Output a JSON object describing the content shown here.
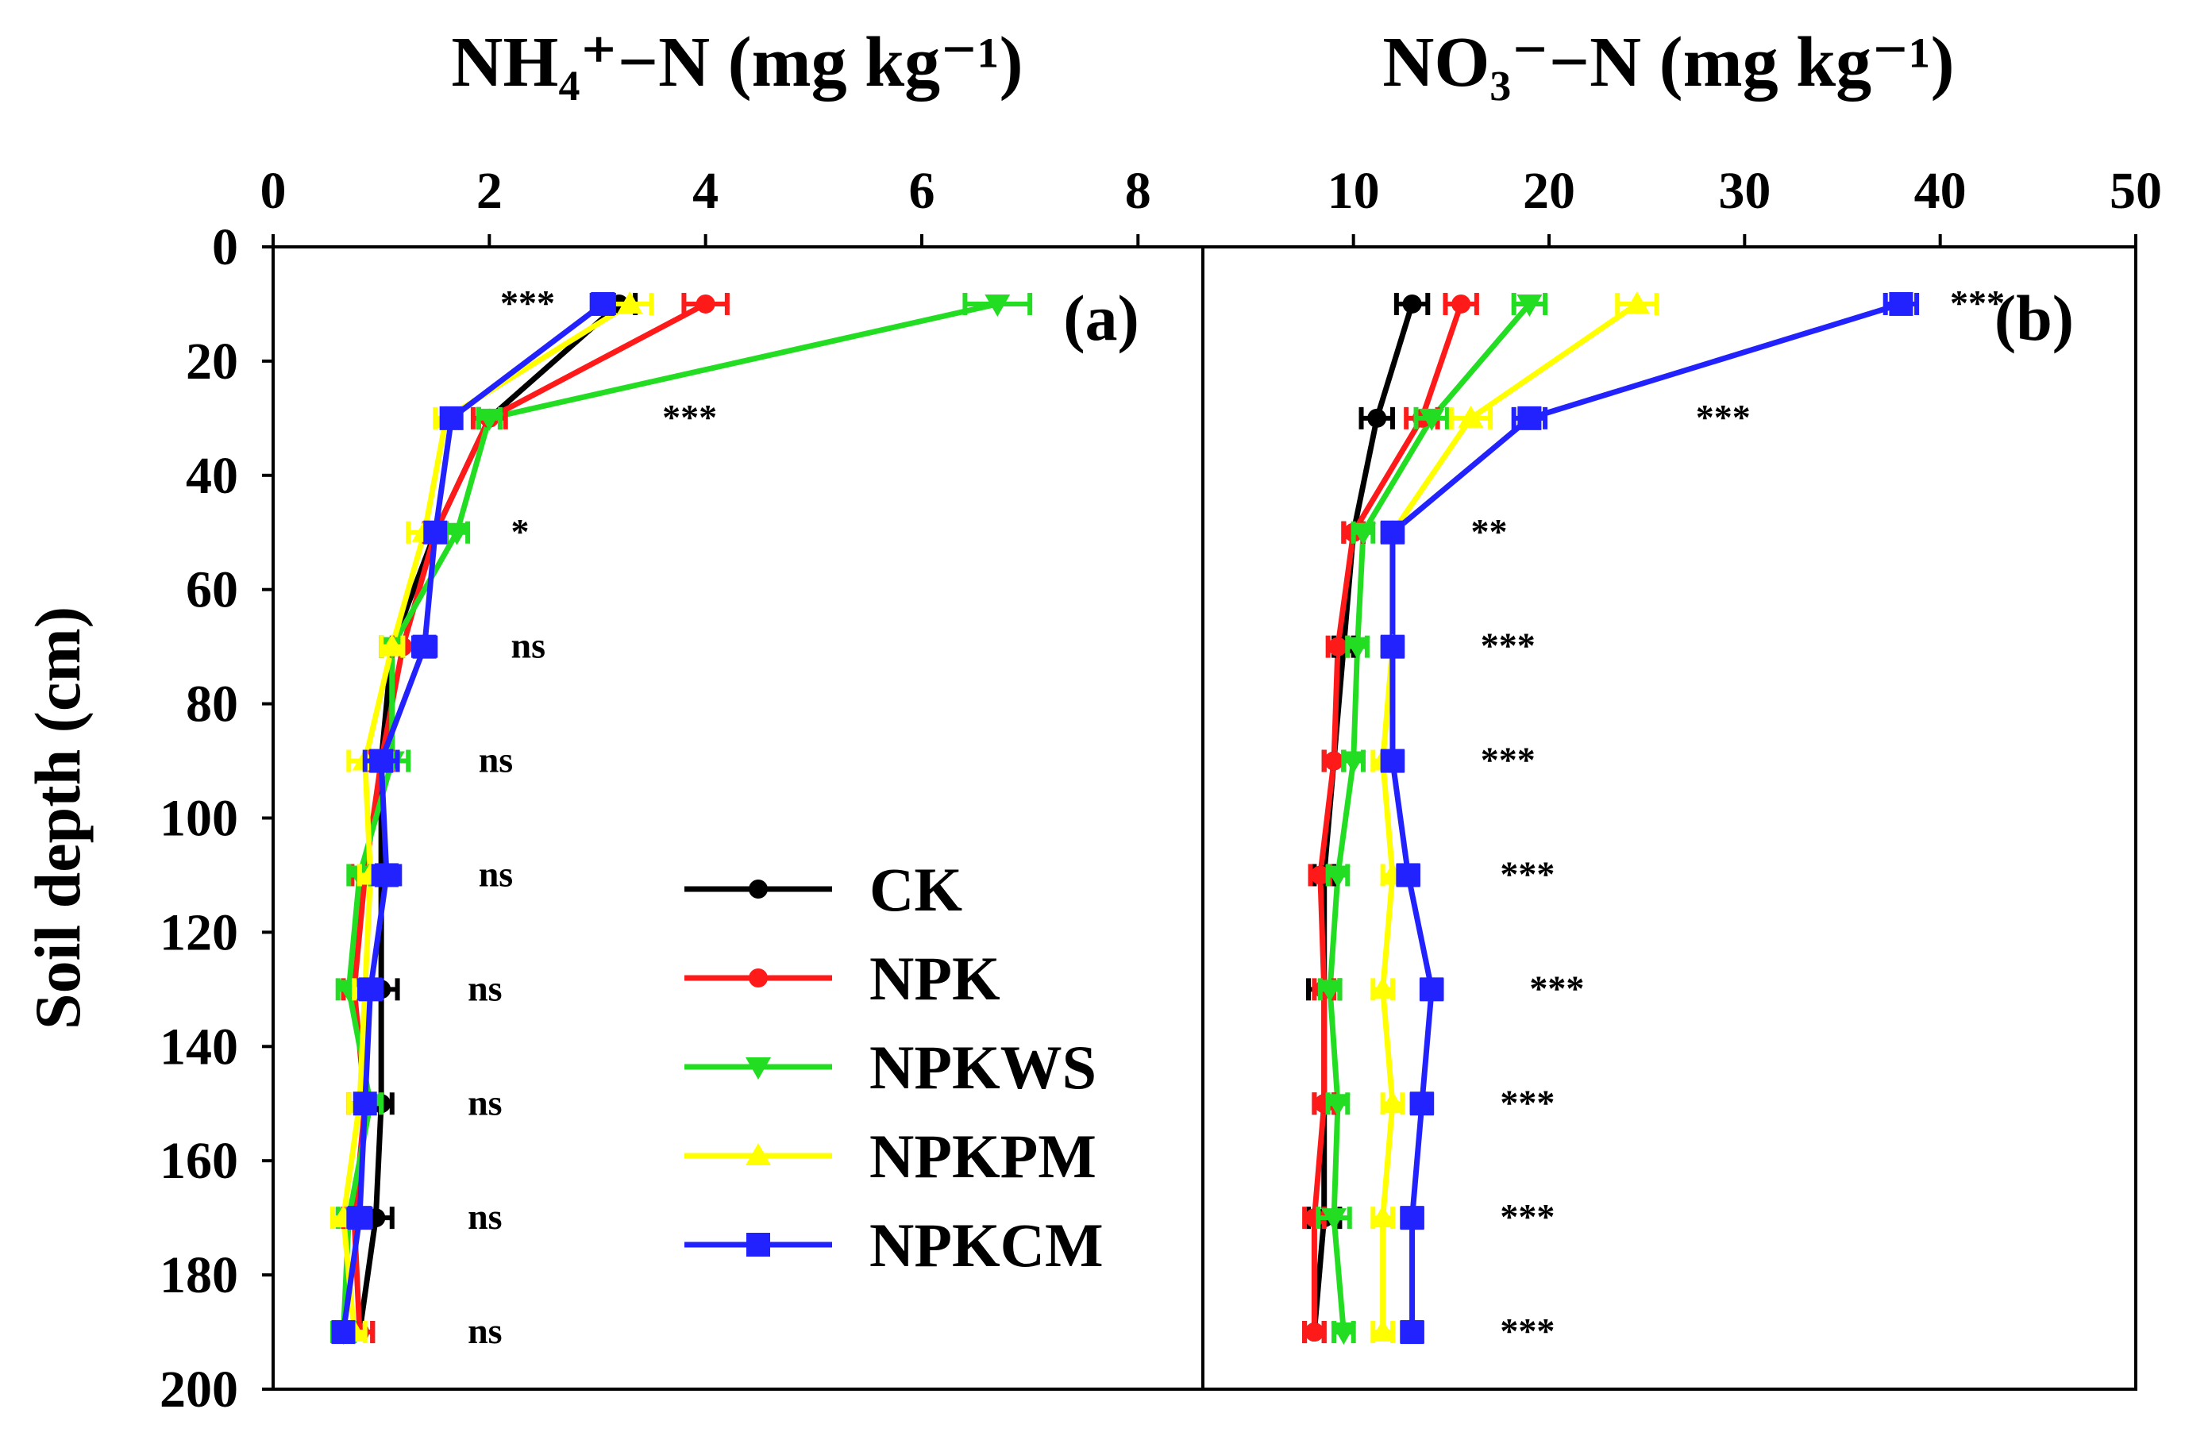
{
  "chart_data": [
    {
      "id": "a",
      "type": "line",
      "orientation": "depth-profile",
      "panel_label": "(a)",
      "title": "NH₄⁺−N (mg kg⁻¹)",
      "xlabel": "NH₄⁺−N (mg kg⁻¹)",
      "ylabel": "Soil depth (cm)",
      "xlim": [
        0,
        8.6
      ],
      "xticks": [
        0,
        2,
        4,
        6,
        8
      ],
      "ylim": [
        0,
        200
      ],
      "yticks": [
        0,
        20,
        40,
        60,
        80,
        100,
        120,
        140,
        160,
        180,
        200
      ],
      "y_inverted": true,
      "x_axis_position": "top",
      "depths": [
        10,
        30,
        50,
        70,
        90,
        110,
        130,
        150,
        170,
        190
      ],
      "series": [
        {
          "name": "CK",
          "values": [
            3.2,
            2.0,
            1.5,
            1.1,
            1.0,
            1.0,
            1.0,
            1.0,
            0.95,
            0.8
          ],
          "errors": [
            0.15,
            0.1,
            0.1,
            0.1,
            0.1,
            0.1,
            0.15,
            0.1,
            0.15,
            0.12
          ]
        },
        {
          "name": "NPK",
          "values": [
            4.0,
            2.0,
            1.5,
            1.2,
            1.0,
            0.85,
            0.75,
            0.85,
            0.75,
            0.8
          ],
          "errors": [
            0.2,
            0.15,
            0.1,
            0.1,
            0.1,
            0.12,
            0.1,
            0.15,
            0.1,
            0.12
          ]
        },
        {
          "name": "NPKWS",
          "values": [
            6.7,
            2.0,
            1.7,
            1.1,
            1.1,
            0.8,
            0.7,
            0.9,
            0.7,
            0.65
          ],
          "errors": [
            0.3,
            0.1,
            0.1,
            0.1,
            0.15,
            0.1,
            0.1,
            0.1,
            0.1,
            0.1
          ]
        },
        {
          "name": "NPKPM",
          "values": [
            3.3,
            1.6,
            1.4,
            1.1,
            0.85,
            0.9,
            0.85,
            0.8,
            0.65,
            0.75
          ],
          "errors": [
            0.2,
            0.1,
            0.15,
            0.1,
            0.15,
            0.1,
            0.1,
            0.1,
            0.1,
            0.1
          ]
        },
        {
          "name": "NPKCM",
          "values": [
            3.05,
            1.65,
            1.5,
            1.4,
            1.0,
            1.05,
            0.9,
            0.85,
            0.8,
            0.65
          ],
          "errors": [
            0.1,
            0.08,
            0.08,
            0.1,
            0.15,
            0.12,
            0.1,
            0.08,
            0.1,
            0.08
          ]
        }
      ],
      "significance": [
        "***",
        "***",
        "*",
        "ns",
        "ns",
        "ns",
        "ns",
        "ns",
        "ns",
        "ns"
      ],
      "significance_x": [
        2.1,
        3.6,
        2.2,
        2.2,
        1.9,
        1.9,
        1.8,
        1.8,
        1.8,
        1.8
      ]
    },
    {
      "id": "b",
      "type": "line",
      "orientation": "depth-profile",
      "panel_label": "(b)",
      "title": "NO₃⁻−N (mg kg⁻¹)",
      "xlabel": "NO₃⁻−N (mg kg⁻¹)",
      "ylabel": "Soil depth (cm)",
      "xlim": [
        2.3,
        50
      ],
      "xticks": [
        10,
        20,
        30,
        40,
        50
      ],
      "ylim": [
        0,
        200
      ],
      "y_inverted": true,
      "x_axis_position": "top",
      "depths": [
        10,
        30,
        50,
        70,
        90,
        110,
        130,
        150,
        170,
        190
      ],
      "series": [
        {
          "name": "CK",
          "values": [
            13.0,
            11.2,
            10.0,
            9.5,
            9.0,
            8.5,
            8.5,
            8.5,
            8.5,
            8.0
          ],
          "errors": [
            0.8,
            0.8,
            0.5,
            0.5,
            0.5,
            0.5,
            0.8,
            0.5,
            0.8,
            0.5
          ]
        },
        {
          "name": "NPK",
          "values": [
            15.5,
            13.5,
            10.0,
            9.2,
            9.0,
            8.3,
            8.5,
            8.5,
            8.0,
            8.0
          ],
          "errors": [
            0.8,
            0.8,
            0.5,
            0.5,
            0.5,
            0.5,
            0.5,
            0.5,
            0.5,
            0.5
          ]
        },
        {
          "name": "NPKWS",
          "values": [
            19.0,
            14.0,
            10.5,
            10.2,
            10.0,
            9.2,
            8.8,
            9.2,
            9.0,
            9.5
          ],
          "errors": [
            0.8,
            0.8,
            0.5,
            0.5,
            0.5,
            0.5,
            0.5,
            0.5,
            0.8,
            0.5
          ]
        },
        {
          "name": "NPKPM",
          "values": [
            24.5,
            16.0,
            12.0,
            12.0,
            11.5,
            12.0,
            11.5,
            12.0,
            11.5,
            11.5
          ],
          "errors": [
            1.0,
            1.0,
            0.5,
            0.5,
            0.5,
            0.5,
            0.5,
            0.5,
            0.5,
            0.5
          ]
        },
        {
          "name": "NPKCM",
          "values": [
            38.0,
            19.0,
            12.0,
            12.0,
            12.0,
            12.8,
            14.0,
            13.5,
            13.0,
            13.0
          ],
          "errors": [
            0.8,
            0.8,
            0.5,
            0.5,
            0.5,
            0.5,
            0.5,
            0.5,
            0.5,
            0.5
          ]
        }
      ],
      "significance": [
        "***",
        "***",
        "**",
        "***",
        "***",
        "***",
        "***",
        "***",
        "***",
        "***"
      ],
      "significance_x": [
        40.5,
        27.5,
        16.0,
        16.5,
        16.5,
        17.5,
        19.0,
        17.5,
        17.5,
        17.5
      ]
    }
  ],
  "legend": {
    "placement": "center-left of panel (b) overlapping panel (a)",
    "entries": [
      {
        "label": "CK",
        "color": "#000000",
        "marker": "circle"
      },
      {
        "label": "NPK",
        "color": "#ff1a1a",
        "marker": "circle"
      },
      {
        "label": "NPKWS",
        "color": "#22dd22",
        "marker": "triangle-down"
      },
      {
        "label": "NPKPM",
        "color": "#ffff00",
        "marker": "triangle-up"
      },
      {
        "label": "NPKCM",
        "color": "#2222ff",
        "marker": "square"
      }
    ]
  },
  "colors": {
    "CK": "#000000",
    "NPK": "#ff1a1a",
    "NPKWS": "#22dd22",
    "NPKPM": "#ffff00",
    "NPKCM": "#2222ff"
  }
}
